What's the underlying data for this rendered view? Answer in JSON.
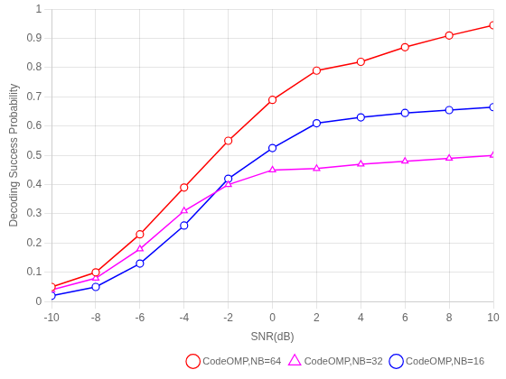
{
  "chart_data": {
    "type": "line",
    "x_label": "SNR(dB)",
    "y_label": "Decoding Success Probability",
    "x": [
      -10,
      -8,
      -6,
      -4,
      -2,
      0,
      2,
      4,
      6,
      8,
      10
    ],
    "series": [
      {
        "name": "CodeOMP,NB=64",
        "color": "#ff0000",
        "marker": "circle",
        "values": [
          0.05,
          0.1,
          0.23,
          0.39,
          0.55,
          0.69,
          0.79,
          0.82,
          0.87,
          0.91,
          0.945
        ]
      },
      {
        "name": "CodeOMP,NB=32",
        "color": "#ff00ff",
        "marker": "triangle",
        "values": [
          0.04,
          0.08,
          0.18,
          0.31,
          0.4,
          0.45,
          0.455,
          0.47,
          0.48,
          0.49,
          0.5
        ]
      },
      {
        "name": "CodeOMP,NB=16",
        "color": "#0000ff",
        "marker": "circle",
        "values": [
          0.02,
          0.05,
          0.13,
          0.26,
          0.42,
          0.525,
          0.61,
          0.63,
          0.645,
          0.655,
          0.665
        ]
      }
    ],
    "xlim": [
      -10,
      10
    ],
    "ylim": [
      0,
      1
    ],
    "xticks": [
      -10,
      -8,
      -6,
      -4,
      -2,
      0,
      2,
      4,
      6,
      8,
      10
    ],
    "yticks": [
      0,
      0.1,
      0.2,
      0.3,
      0.4,
      0.5,
      0.6,
      0.7,
      0.8,
      0.9,
      1
    ],
    "grid": true,
    "legend": "lower right"
  }
}
